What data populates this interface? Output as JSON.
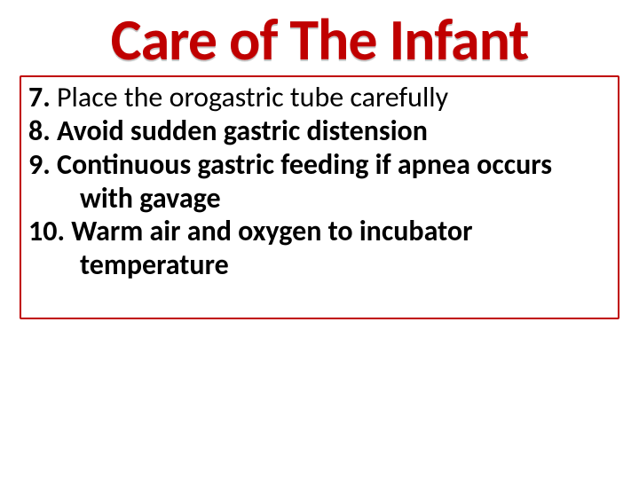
{
  "title": "Care of The Infant",
  "title_color": "#c00000",
  "title_shadow_color": "#c8c8c8",
  "title_fontsize": 66,
  "border_color": "#c00000",
  "body_fontsize": 32,
  "text_color": "#000000",
  "background_color": "#ffffff",
  "items": [
    {
      "num": "7.",
      "text": "Place the orogastric tube carefully",
      "bold_rest": false
    },
    {
      "num": "8.",
      "text": "Avoid sudden gastric distension",
      "bold_rest": true
    },
    {
      "num": "9.",
      "text": "Continuous gastric feeding if apnea occurs with gavage",
      "bold_rest": true
    },
    {
      "num": "10.",
      "text": "Warm air and oxygen to incubator temperature",
      "bold_rest": true
    }
  ]
}
